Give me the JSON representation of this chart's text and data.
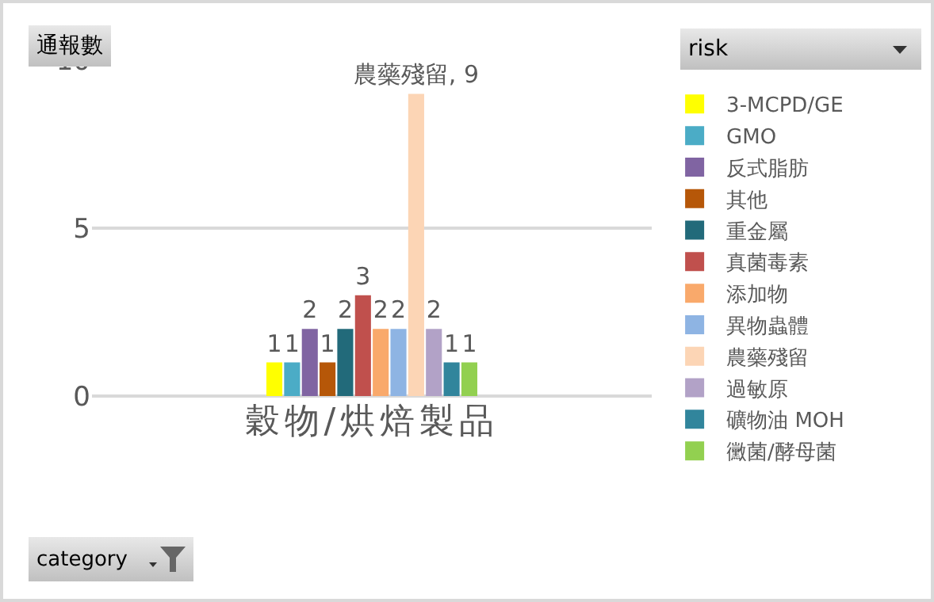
{
  "chart_data": {
    "type": "bar",
    "categories": [
      "穀物/烘焙製品"
    ],
    "ylabel": "通報數",
    "annotations": [
      "category"
    ],
    "legend_title": "risk",
    "legend": "right",
    "grid": "y",
    "ylim": [
      0,
      10
    ],
    "yticks": [
      0,
      5,
      10
    ],
    "series": [
      {
        "name": "3-MCPD/GE",
        "color": "#ffff00",
        "values": [
          1
        ],
        "value_labels": [
          "1"
        ]
      },
      {
        "name": "GMO",
        "color": "#4bacc6",
        "values": [
          1
        ],
        "value_labels": [
          "1"
        ]
      },
      {
        "name": "反式脂肪",
        "color": "#8064a2",
        "values": [
          2
        ],
        "value_labels": [
          "2"
        ]
      },
      {
        "name": "其他",
        "color": "#b65708",
        "values": [
          1
        ],
        "value_labels": [
          "1"
        ]
      },
      {
        "name": "重金屬",
        "color": "#226a7a",
        "values": [
          2
        ],
        "value_labels": [
          "2"
        ]
      },
      {
        "name": "真菌毒素",
        "color": "#c0504d",
        "values": [
          3
        ],
        "value_labels": [
          "3"
        ]
      },
      {
        "name": "添加物",
        "color": "#f9a96b",
        "values": [
          2
        ],
        "value_labels": [
          "2"
        ]
      },
      {
        "name": "異物蟲體",
        "color": "#8eb4e3",
        "values": [
          2
        ],
        "value_labels": [
          "2"
        ]
      },
      {
        "name": "農藥殘留",
        "color": "#fcd5b5",
        "values": [
          9
        ],
        "value_labels": [
          "農藥殘留, 9"
        ]
      },
      {
        "name": "過敏原",
        "color": "#b2a2c7",
        "values": [
          2
        ],
        "value_labels": [
          "2"
        ]
      },
      {
        "name": "礦物油 MOH",
        "color": "#31859c",
        "values": [
          1
        ],
        "value_labels": [
          "1"
        ]
      },
      {
        "name": "黴菌/酵母菌",
        "color": "#92d050",
        "values": [
          1
        ],
        "value_labels": [
          "1"
        ]
      }
    ]
  }
}
